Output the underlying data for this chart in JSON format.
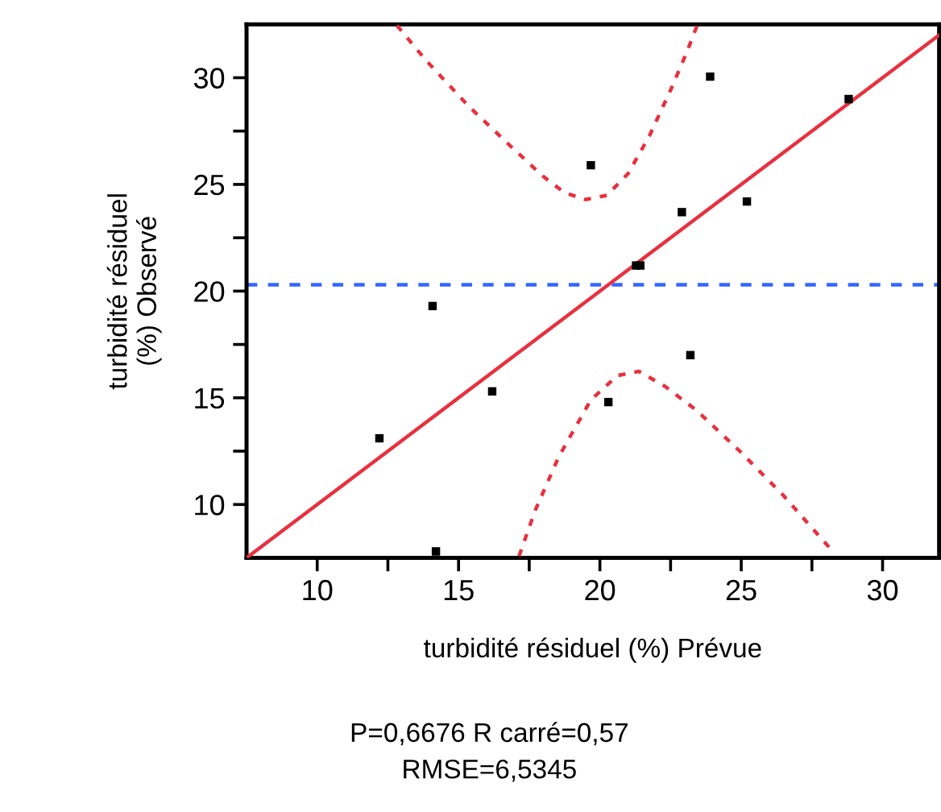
{
  "chart_data": {
    "type": "scatter",
    "xlabel": "turbidité résiduel (%) Prévue",
    "ylabel": "turbidité résiduel\n(%) Observé",
    "annotations": [
      "P=0,6676 R carré=0,57",
      "RMSE=6,5345"
    ],
    "xlim": [
      7.5,
      32
    ],
    "ylim": [
      7.5,
      32.5
    ],
    "xticks": [
      10,
      {
        "value": 12.5,
        "label": null
      },
      15,
      {
        "value": 17.5,
        "label": null
      },
      20,
      {
        "value": 22.5,
        "label": null
      },
      25,
      {
        "value": 27.5,
        "label": null
      },
      30
    ],
    "yticks": [
      10,
      {
        "value": 12.5,
        "label": null
      },
      15,
      {
        "value": 17.5,
        "label": null
      },
      20,
      {
        "value": 22.5,
        "label": null
      },
      25,
      {
        "value": 27.5,
        "label": null
      },
      30
    ],
    "grid": false,
    "legend": false,
    "ref_lines": [
      {
        "axis": "y",
        "value": 20.3,
        "color": "#3366ff",
        "line_style": "dashed"
      }
    ],
    "series": [
      {
        "color": "#000000",
        "marker": "square",
        "x": [
          12.2,
          14.08,
          14.2,
          16.19,
          19.68,
          20.3,
          21.28,
          21.43,
          22.9,
          23.2,
          23.9,
          25.2,
          28.8
        ],
        "values": [
          13.1,
          19.3,
          7.8,
          15.3,
          25.9,
          14.8,
          21.2,
          21.2,
          23.7,
          17.0,
          30.05,
          24.2,
          29.0
        ]
      },
      {
        "type": "line",
        "color": "#e8303f",
        "line_style": "solid",
        "x": [
          7.5,
          32
        ],
        "values": [
          7.5,
          32
        ]
      },
      {
        "type": "line",
        "color": "#e8303f",
        "line_style": "dotted",
        "x": [
          12.82,
          13.85,
          15.36,
          16.86,
          17.99,
          18.74,
          19.49,
          20.25,
          21.0,
          21.75,
          22.5,
          23.07,
          23.44
        ],
        "values": [
          32.45,
          30.81,
          28.66,
          26.77,
          25.38,
          24.62,
          24.29,
          24.49,
          25.51,
          27.27,
          29.42,
          31.18,
          32.45
        ]
      },
      {
        "type": "line",
        "color": "#e8303f",
        "line_style": "dotted",
        "x": [
          17.14,
          17.71,
          18.55,
          19.68,
          20.62,
          21.38,
          22.31,
          23.44,
          24.95,
          26.45,
          28.14
        ],
        "values": [
          7.58,
          9.72,
          12.25,
          14.9,
          16.04,
          16.24,
          15.53,
          14.39,
          12.5,
          10.48,
          7.95
        ]
      }
    ]
  }
}
